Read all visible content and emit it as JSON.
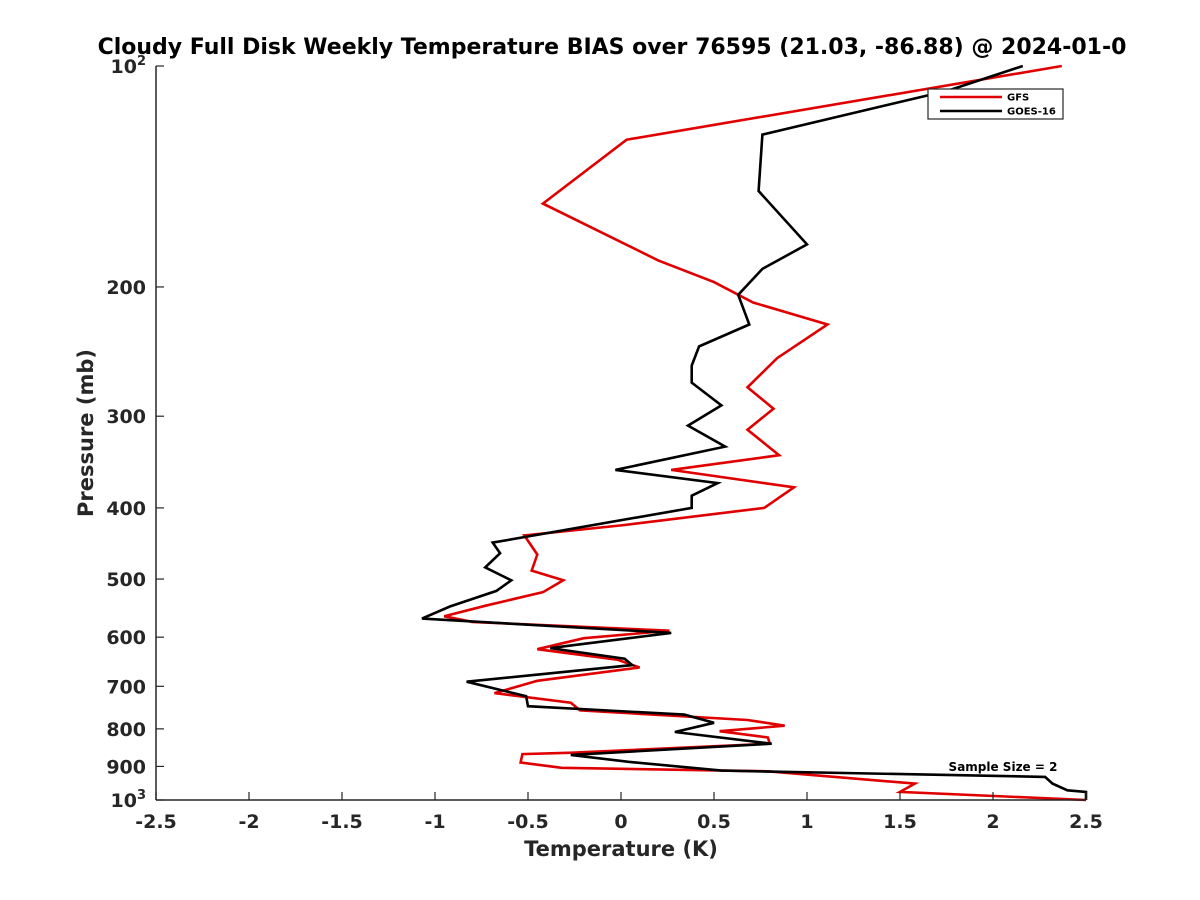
{
  "chart_data": {
    "type": "line",
    "title": "Cloudy Full Disk Weekly Temperature BIAS over 76595 (21.03, -86.88) @ 2024-01-0",
    "xlabel": "Temperature (K)",
    "ylabel": "Pressure (mb)",
    "xlim": [
      -2.5,
      2.5
    ],
    "ylim": [
      100,
      1000
    ],
    "y_scale": "log",
    "y_reversed": true,
    "xticks": [
      "-2.5",
      "-2",
      "-1.5",
      "-1",
      "-0.5",
      "0",
      "0.5",
      "1",
      "1.5",
      "2",
      "2.5"
    ],
    "yticks": [
      {
        "value": 100,
        "base": "10",
        "exp": "2"
      },
      {
        "value": 200,
        "base": "200",
        "exp": ""
      },
      {
        "value": 300,
        "base": "300",
        "exp": ""
      },
      {
        "value": 400,
        "base": "400",
        "exp": ""
      },
      {
        "value": 500,
        "base": "500",
        "exp": ""
      },
      {
        "value": 600,
        "base": "600",
        "exp": ""
      },
      {
        "value": 700,
        "base": "700",
        "exp": ""
      },
      {
        "value": 800,
        "base": "800",
        "exp": ""
      },
      {
        "value": 900,
        "base": "900",
        "exp": ""
      },
      {
        "value": 1000,
        "base": "10",
        "exp": "3"
      }
    ],
    "legend_position": "top-right",
    "grid": false,
    "annotation": "Sample Size = 2",
    "series": [
      {
        "name": "GFS",
        "color": "#e00000",
        "points": [
          [
            2.37,
            100
          ],
          [
            0.03,
            126
          ],
          [
            -0.42,
            154
          ],
          [
            0.2,
            184
          ],
          [
            0.5,
            197
          ],
          [
            0.71,
            210
          ],
          [
            1.11,
            225
          ],
          [
            0.84,
            250
          ],
          [
            0.68,
            274
          ],
          [
            0.82,
            293
          ],
          [
            0.68,
            313
          ],
          [
            0.85,
            339
          ],
          [
            0.27,
            355
          ],
          [
            0.93,
            375
          ],
          [
            0.77,
            400
          ],
          [
            0.02,
            422
          ],
          [
            -0.52,
            436
          ],
          [
            -0.45,
            463
          ],
          [
            -0.48,
            487
          ],
          [
            -0.31,
            502
          ],
          [
            -0.42,
            521
          ],
          [
            -0.72,
            543
          ],
          [
            -0.95,
            562
          ],
          [
            -0.8,
            572
          ],
          [
            0.26,
            588
          ],
          [
            -0.2,
            602
          ],
          [
            -0.45,
            623
          ],
          [
            -0.02,
            644
          ],
          [
            0.1,
            660
          ],
          [
            -0.45,
            688
          ],
          [
            -0.68,
            715
          ],
          [
            -0.27,
            737
          ],
          [
            -0.22,
            755
          ],
          [
            0.68,
            778
          ],
          [
            0.88,
            792
          ],
          [
            0.53,
            806
          ],
          [
            0.79,
            822
          ],
          [
            0.8,
            838
          ],
          [
            -0.26,
            862
          ],
          [
            -0.53,
            866
          ],
          [
            -0.54,
            889
          ],
          [
            -0.32,
            904
          ],
          [
            0.79,
            914
          ],
          [
            1.58,
            950
          ],
          [
            1.5,
            975
          ],
          [
            2.5,
            1000
          ]
        ]
      },
      {
        "name": "GOES-16",
        "color": "#000000",
        "points": [
          [
            2.16,
            100
          ],
          [
            1.76,
            108
          ],
          [
            0.76,
            124
          ],
          [
            0.74,
            148
          ],
          [
            1.0,
            175
          ],
          [
            0.76,
            189
          ],
          [
            0.63,
            205
          ],
          [
            0.69,
            225
          ],
          [
            0.42,
            241
          ],
          [
            0.38,
            256
          ],
          [
            0.38,
            270
          ],
          [
            0.54,
            290
          ],
          [
            0.36,
            309
          ],
          [
            0.56,
            330
          ],
          [
            -0.03,
            355
          ],
          [
            0.52,
            370
          ],
          [
            0.38,
            385
          ],
          [
            0.38,
            400
          ],
          [
            -0.69,
            446
          ],
          [
            -0.65,
            461
          ],
          [
            -0.73,
            482
          ],
          [
            -0.59,
            502
          ],
          [
            -0.67,
            519
          ],
          [
            -0.92,
            545
          ],
          [
            -1.07,
            566
          ],
          [
            0.27,
            592
          ],
          [
            -0.38,
            621
          ],
          [
            0.02,
            642
          ],
          [
            0.06,
            655
          ],
          [
            -0.83,
            690
          ],
          [
            -0.51,
            722
          ],
          [
            -0.5,
            745
          ],
          [
            0.34,
            765
          ],
          [
            0.5,
            785
          ],
          [
            0.29,
            808
          ],
          [
            0.81,
            838
          ],
          [
            -0.27,
            868
          ],
          [
            0.04,
            887
          ],
          [
            0.54,
            912
          ],
          [
            2.28,
            930
          ],
          [
            2.32,
            950
          ],
          [
            2.4,
            970
          ],
          [
            2.5,
            975
          ],
          [
            2.5,
            1000
          ]
        ]
      }
    ]
  }
}
